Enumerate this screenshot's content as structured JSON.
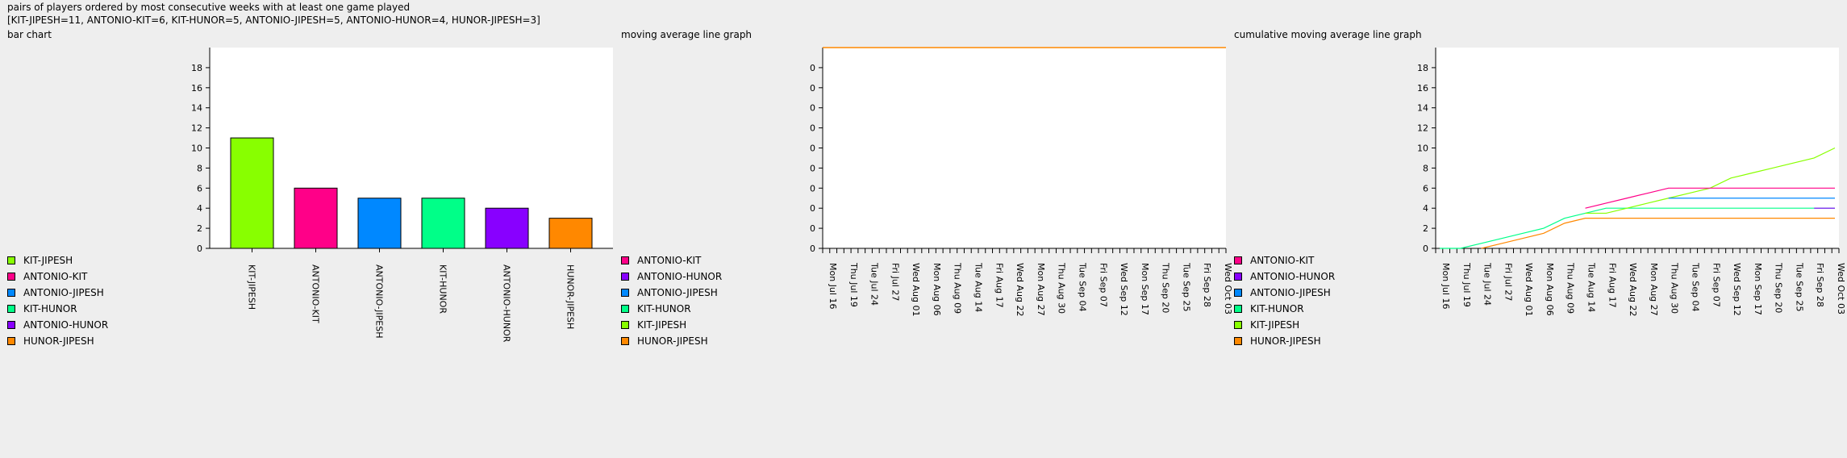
{
  "header": {
    "title": "pairs of players ordered by most consecutive weeks with at least one game played",
    "summary": "[KIT-JIPESH=11, ANTONIO-KIT=6, KIT-HUNOR=5, ANTONIO-JIPESH=5, ANTONIO-HUNOR=4, HUNOR-JIPESH=3]"
  },
  "colors": {
    "KIT-JIPESH": "#88ff00",
    "ANTONIO-KIT": "#ff0088",
    "ANTONIO-JIPESH": "#0088ff",
    "KIT-HUNOR": "#00ff88",
    "ANTONIO-HUNOR": "#8800ff",
    "HUNOR-JIPESH": "#ff8800"
  },
  "chart_data": [
    {
      "type": "bar",
      "caption": "bar chart",
      "categories": [
        "KIT-JIPESH",
        "ANTONIO-KIT",
        "ANTONIO-JIPESH",
        "KIT-HUNOR",
        "ANTONIO-HUNOR",
        "HUNOR-JIPESH"
      ],
      "values": [
        11,
        6,
        5,
        5,
        4,
        3
      ],
      "ylim": [
        0,
        20
      ],
      "yticks": [
        0,
        2,
        4,
        6,
        8,
        10,
        12,
        14,
        16,
        18
      ],
      "legend": [
        "KIT-JIPESH",
        "ANTONIO-KIT",
        "ANTONIO-JIPESH",
        "KIT-HUNOR",
        "ANTONIO-HUNOR",
        "HUNOR-JIPESH"
      ],
      "legend_position": "left"
    },
    {
      "type": "line",
      "caption": "moving average line graph",
      "x_labels": [
        "Mon Jul 16",
        "Thu Jul 19",
        "Tue Jul 24",
        "Fri Jul 27",
        "Wed Aug 01",
        "Mon Aug 06",
        "Thu Aug 09",
        "Tue Aug 14",
        "Fri Aug 17",
        "Wed Aug 22",
        "Mon Aug 27",
        "Thu Aug 30",
        "Tue Sep 04",
        "Fri Sep 07",
        "Wed Sep 12",
        "Mon Sep 17",
        "Thu Sep 20",
        "Tue Sep 25",
        "Fri Sep 28",
        "Wed Oct 03"
      ],
      "yticks": [
        "0",
        "0",
        "0",
        "0",
        "0",
        "0",
        "0",
        "0",
        "0",
        "0"
      ],
      "series": [
        {
          "name": "HUNOR-JIPESH",
          "values": [
            0,
            0,
            0,
            0,
            0,
            0,
            0,
            0,
            0,
            0,
            0,
            0,
            0,
            0,
            0,
            0,
            0,
            0,
            0,
            0
          ]
        }
      ],
      "legend": [
        "ANTONIO-KIT",
        "ANTONIO-HUNOR",
        "ANTONIO-JIPESH",
        "KIT-HUNOR",
        "KIT-JIPESH",
        "HUNOR-JIPESH"
      ],
      "legend_position": "left"
    },
    {
      "type": "line",
      "caption": "cumulative moving average line graph",
      "x_labels": [
        "Mon Jul 16",
        "Thu Jul 19",
        "Tue Jul 24",
        "Fri Jul 27",
        "Wed Aug 01",
        "Mon Aug 06",
        "Thu Aug 09",
        "Tue Aug 14",
        "Fri Aug 17",
        "Wed Aug 22",
        "Mon Aug 27",
        "Thu Aug 30",
        "Tue Sep 04",
        "Fri Sep 07",
        "Wed Sep 12",
        "Mon Sep 17",
        "Thu Sep 20",
        "Tue Sep 25",
        "Fri Sep 28",
        "Wed Oct 03"
      ],
      "ylim": [
        0,
        20
      ],
      "yticks": [
        0,
        2,
        4,
        6,
        8,
        10,
        12,
        14,
        16,
        18
      ],
      "series": [
        {
          "name": "KIT-HUNOR",
          "values": [
            0,
            0,
            0.5,
            1,
            1.5,
            2,
            3,
            3.5,
            4,
            4,
            4,
            4,
            4,
            4,
            4,
            4,
            4,
            4,
            4,
            4
          ]
        },
        {
          "name": "HUNOR-JIPESH",
          "values": [
            null,
            null,
            0,
            0.5,
            1,
            1.5,
            2.5,
            3,
            3,
            3,
            3,
            3,
            3,
            3,
            3,
            3,
            3,
            3,
            3,
            3
          ]
        },
        {
          "name": "KIT-JIPESH",
          "values": [
            null,
            null,
            null,
            null,
            null,
            null,
            null,
            3.5,
            3.5,
            4,
            4.5,
            5,
            5.5,
            6,
            7,
            7.5,
            8,
            8.5,
            9,
            10
          ]
        },
        {
          "name": "ANTONIO-KIT",
          "values": [
            null,
            null,
            null,
            null,
            null,
            null,
            null,
            4,
            4.5,
            5,
            5.5,
            6,
            6,
            6,
            6,
            6,
            6,
            6,
            6,
            6
          ]
        },
        {
          "name": "ANTONIO-JIPESH",
          "values": [
            null,
            null,
            null,
            null,
            null,
            null,
            null,
            null,
            null,
            null,
            null,
            5,
            5,
            5,
            5,
            5,
            5,
            5,
            5,
            5
          ]
        },
        {
          "name": "ANTONIO-HUNOR",
          "values": [
            null,
            null,
            null,
            null,
            null,
            null,
            null,
            null,
            null,
            null,
            null,
            null,
            null,
            null,
            null,
            null,
            null,
            null,
            4,
            4
          ]
        }
      ],
      "legend": [
        "ANTONIO-KIT",
        "ANTONIO-HUNOR",
        "ANTONIO-JIPESH",
        "KIT-HUNOR",
        "KIT-JIPESH",
        "HUNOR-JIPESH"
      ],
      "legend_position": "left"
    }
  ]
}
